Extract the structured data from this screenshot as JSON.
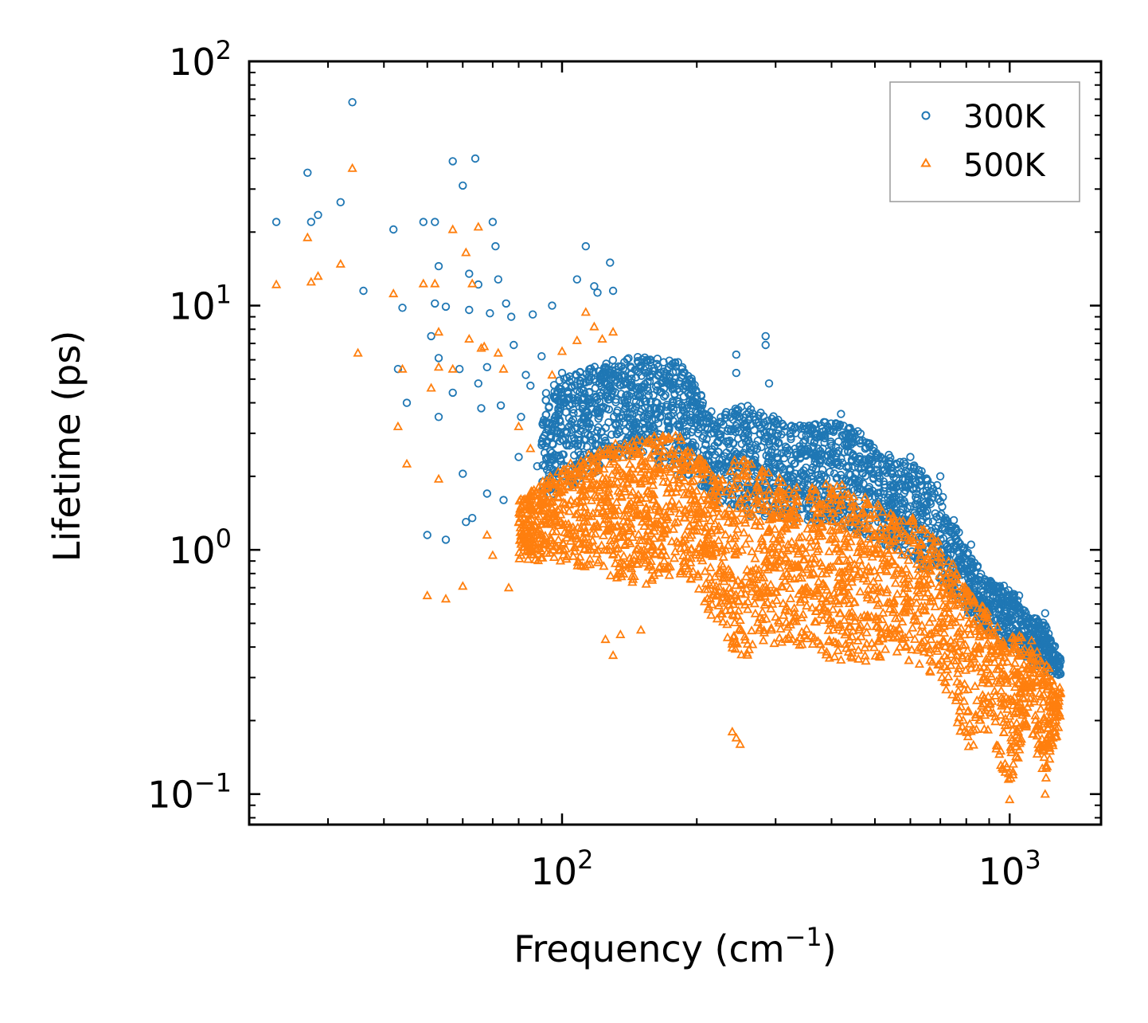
{
  "chart_data": {
    "type": "scatter",
    "title": "",
    "xlabel": "Frequency (cm",
    "xlabel_sup": "−1",
    "xlabel_end": ")",
    "ylabel": "Lifetime (ps)",
    "xscale": "log",
    "yscale": "log",
    "xlim": [
      20,
      1600
    ],
    "ylim": [
      0.075,
      100
    ],
    "x_ticks": [
      {
        "base": "10",
        "exp": "2",
        "value": 100
      },
      {
        "base": "10",
        "exp": "3",
        "value": 1000
      }
    ],
    "y_ticks": [
      {
        "base": "10",
        "exp": "2",
        "value": 100
      },
      {
        "base": "10",
        "exp": "1",
        "value": 10
      },
      {
        "base": "10",
        "exp": "0",
        "value": 1
      },
      {
        "base": "10",
        "exp": "−1",
        "value": 0.1
      }
    ],
    "legend_position": "top-right",
    "series": [
      {
        "name": "300K",
        "marker": "circle",
        "color": "#1f77b4",
        "points": [
          [
            23,
            22
          ],
          [
            27,
            35
          ],
          [
            27.5,
            22
          ],
          [
            28.5,
            23.5
          ],
          [
            32,
            26.5
          ],
          [
            34,
            68
          ],
          [
            36,
            11.5
          ],
          [
            42,
            20.5
          ],
          [
            43,
            5.5
          ],
          [
            44,
            9.8
          ],
          [
            45,
            4.0
          ],
          [
            49,
            22
          ],
          [
            50,
            1.15
          ],
          [
            51,
            7.5
          ],
          [
            52,
            22
          ],
          [
            52,
            10.2
          ],
          [
            53,
            14.5
          ],
          [
            53,
            6.1
          ],
          [
            53,
            3.5
          ],
          [
            55,
            9.9
          ],
          [
            55,
            1.1
          ],
          [
            57,
            39
          ],
          [
            57,
            4.4
          ],
          [
            59,
            5.5
          ],
          [
            60,
            31
          ],
          [
            60,
            2.05
          ],
          [
            61,
            1.3
          ],
          [
            62,
            13.5
          ],
          [
            62,
            9.6
          ],
          [
            63,
            1.35
          ],
          [
            64,
            40
          ],
          [
            65,
            12.2
          ],
          [
            65,
            4.8
          ],
          [
            66,
            3.8
          ],
          [
            68,
            5.6
          ],
          [
            68,
            1.7
          ],
          [
            69,
            9.3
          ],
          [
            70,
            22
          ],
          [
            71,
            17.5
          ],
          [
            72,
            12.8
          ],
          [
            73,
            3.9
          ],
          [
            74,
            1.6
          ],
          [
            75,
            10.2
          ],
          [
            77,
            9.0
          ],
          [
            78,
            6.9
          ],
          [
            80,
            2.4
          ],
          [
            81,
            3.5
          ],
          [
            83,
            5.2
          ],
          [
            85,
            4.7
          ],
          [
            86,
            9.2
          ],
          [
            88,
            2.2
          ],
          [
            90,
            6.2
          ],
          [
            92,
            4.1
          ],
          [
            95,
            10.0
          ],
          [
            98,
            4.4
          ],
          [
            100,
            5.3
          ],
          [
            105,
            3.1
          ],
          [
            108,
            12.8
          ],
          [
            112,
            4.2
          ],
          [
            113,
            17.5
          ],
          [
            118,
            12.0
          ],
          [
            120,
            11.3
          ],
          [
            125,
            5.2
          ],
          [
            128,
            15.0
          ],
          [
            130,
            11.5
          ],
          [
            140,
            4.8
          ],
          [
            150,
            5.7
          ],
          [
            160,
            4.3
          ],
          [
            175,
            4.7
          ],
          [
            185,
            5.5
          ],
          [
            245,
            5.3
          ],
          [
            245,
            6.3
          ],
          [
            285,
            7.5
          ],
          [
            285,
            6.9
          ],
          [
            290,
            4.8
          ],
          [
            325,
            3.2
          ],
          [
            420,
            3.6
          ],
          [
            450,
            3.0
          ],
          [
            600,
            2.4
          ],
          [
            700,
            2.0
          ],
          [
            820,
            1.05
          ],
          [
            950,
            0.7
          ],
          [
            1050,
            0.65
          ],
          [
            1200,
            0.55
          ],
          [
            1300,
            0.35
          ]
        ],
        "band": [
          [
            90,
            1.6,
            4.5
          ],
          [
            110,
            1.9,
            5.5
          ],
          [
            130,
            2.3,
            6.0
          ],
          [
            150,
            2.5,
            6.2
          ],
          [
            180,
            2.0,
            6.0
          ],
          [
            200,
            1.9,
            4.8
          ],
          [
            220,
            1.6,
            3.5
          ],
          [
            250,
            1.4,
            4.0
          ],
          [
            300,
            1.3,
            3.5
          ],
          [
            350,
            1.3,
            3.2
          ],
          [
            400,
            1.3,
            3.4
          ],
          [
            450,
            1.2,
            3.2
          ],
          [
            500,
            1.1,
            2.6
          ],
          [
            550,
            1.0,
            2.4
          ],
          [
            600,
            0.9,
            2.3
          ],
          [
            700,
            0.75,
            1.8
          ],
          [
            800,
            0.55,
            1.0
          ],
          [
            900,
            0.45,
            0.75
          ],
          [
            1000,
            0.4,
            0.7
          ],
          [
            1100,
            0.35,
            0.55
          ],
          [
            1200,
            0.32,
            0.5
          ],
          [
            1300,
            0.3,
            0.36
          ]
        ]
      },
      {
        "name": "500K",
        "marker": "triangle",
        "color": "#ff7f0e",
        "points": [
          [
            23,
            12.2
          ],
          [
            27,
            19
          ],
          [
            27.5,
            12.5
          ],
          [
            28.5,
            13.2
          ],
          [
            32,
            14.8
          ],
          [
            34,
            36.5
          ],
          [
            35,
            6.4
          ],
          [
            42,
            11.2
          ],
          [
            43,
            3.2
          ],
          [
            44,
            5.5
          ],
          [
            45,
            2.25
          ],
          [
            49,
            12.3
          ],
          [
            50,
            0.65
          ],
          [
            51,
            4.6
          ],
          [
            52,
            12.3
          ],
          [
            53,
            7.8
          ],
          [
            53,
            5.6
          ],
          [
            53,
            1.95
          ],
          [
            55,
            0.63
          ],
          [
            57,
            20.5
          ],
          [
            57,
            5.5
          ],
          [
            60,
            0.71
          ],
          [
            61,
            16.5
          ],
          [
            62,
            7.3
          ],
          [
            63,
            12.3
          ],
          [
            65,
            21
          ],
          [
            66,
            6.7
          ],
          [
            67,
            6.8
          ],
          [
            68,
            1.15
          ],
          [
            70,
            0.95
          ],
          [
            72,
            6.4
          ],
          [
            74,
            5.5
          ],
          [
            76,
            0.7
          ],
          [
            80,
            3.2
          ],
          [
            85,
            2.6
          ],
          [
            90,
            1.7
          ],
          [
            95,
            5.2
          ],
          [
            100,
            6.5
          ],
          [
            108,
            7.2
          ],
          [
            113,
            9.4
          ],
          [
            118,
            8.2
          ],
          [
            123,
            7.3
          ],
          [
            130,
            7.8
          ],
          [
            125,
            0.43
          ],
          [
            130,
            0.37
          ],
          [
            135,
            0.45
          ],
          [
            150,
            0.47
          ],
          [
            240,
            0.18
          ],
          [
            245,
            0.17
          ],
          [
            250,
            0.16
          ],
          [
            1000,
            0.095
          ],
          [
            1200,
            0.1
          ],
          [
            1300,
            0.26
          ]
        ],
        "band": [
          [
            80,
            0.9,
            1.6
          ],
          [
            100,
            0.9,
            2.2
          ],
          [
            120,
            0.8,
            2.6
          ],
          [
            150,
            0.7,
            2.9
          ],
          [
            180,
            0.8,
            3.0
          ],
          [
            200,
            0.7,
            2.5
          ],
          [
            220,
            0.5,
            2.0
          ],
          [
            250,
            0.35,
            2.5
          ],
          [
            300,
            0.4,
            2.0
          ],
          [
            350,
            0.4,
            1.8
          ],
          [
            400,
            0.35,
            1.9
          ],
          [
            450,
            0.35,
            1.8
          ],
          [
            500,
            0.35,
            1.6
          ],
          [
            550,
            0.35,
            1.4
          ],
          [
            600,
            0.35,
            1.4
          ],
          [
            700,
            0.3,
            1.1
          ],
          [
            800,
            0.15,
            0.7
          ],
          [
            900,
            0.18,
            0.55
          ],
          [
            1000,
            0.1,
            0.45
          ],
          [
            1100,
            0.2,
            0.45
          ],
          [
            1200,
            0.11,
            0.35
          ],
          [
            1300,
            0.2,
            0.27
          ]
        ]
      }
    ]
  }
}
